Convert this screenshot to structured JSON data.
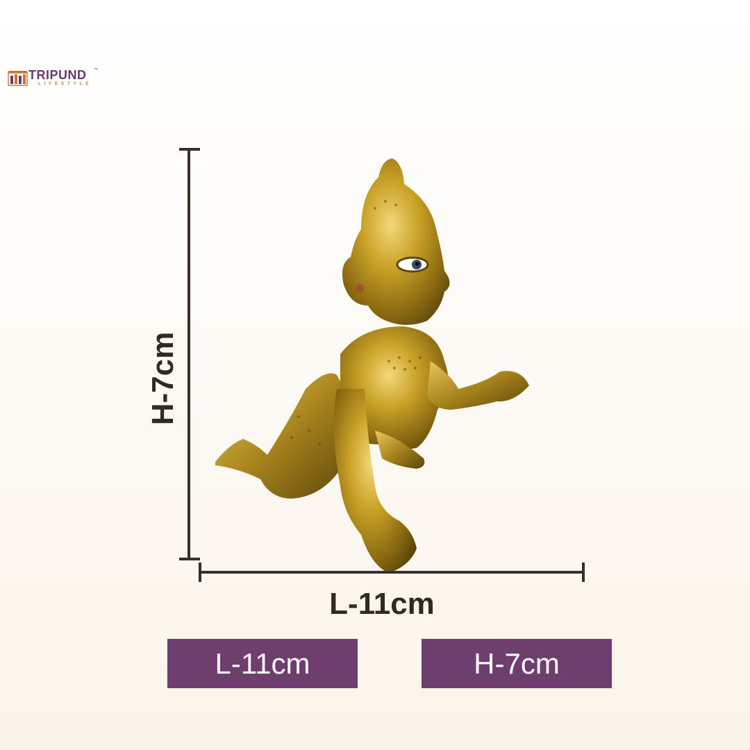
{
  "brand": {
    "name": "TRIPUND",
    "trademark": "™",
    "tagline": "LIFESTYLE",
    "colors": {
      "name": "#6b3a6e",
      "tagline": "#c9762c"
    }
  },
  "product_image": {
    "icon": "brass-crawling-figurine"
  },
  "dimensions": {
    "height_label": "H-7cm",
    "length_label": "L-11cm",
    "line_color": "#3a2f26"
  },
  "badges": {
    "length": "L-11cm",
    "height": "H-7cm",
    "color": "#6e3e6e"
  }
}
